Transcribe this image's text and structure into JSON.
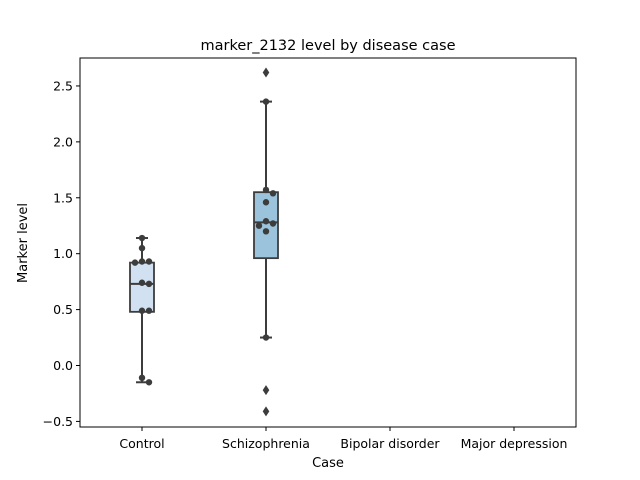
{
  "chart_data": {
    "type": "box",
    "title": "marker_2132 level by disease case",
    "xlabel": "Case",
    "ylabel": "Marker level",
    "categories": [
      "Control",
      "Schizophrenia",
      "Bipolar disorder",
      "Major depression"
    ],
    "ylim": [
      -0.55,
      2.75
    ],
    "yticks": [
      -0.5,
      0.0,
      0.5,
      1.0,
      1.5,
      2.0,
      2.5
    ],
    "ytick_labels": [
      "−0.5",
      "0.0",
      "0.5",
      "1.0",
      "1.5",
      "2.0",
      "2.5"
    ],
    "grid": false,
    "boxes": [
      {
        "category": "Control",
        "color": "#d1e1f1",
        "q1": 0.48,
        "median": 0.73,
        "q3": 0.92,
        "whisker_low": -0.15,
        "whisker_high": 1.14,
        "points": [
          1.14,
          1.05,
          0.93,
          0.93,
          0.92,
          0.74,
          0.73,
          0.49,
          0.49,
          -0.11,
          -0.15
        ],
        "outliers": []
      },
      {
        "category": "Schizophrenia",
        "color": "#9bc3dc",
        "q1": 0.96,
        "median": 1.28,
        "q3": 1.55,
        "whisker_low": 0.25,
        "whisker_high": 2.36,
        "points": [
          2.36,
          1.57,
          1.54,
          1.46,
          1.29,
          1.27,
          1.25,
          1.2,
          0.25
        ],
        "outliers": [
          2.62,
          -0.22,
          -0.41
        ]
      }
    ]
  }
}
